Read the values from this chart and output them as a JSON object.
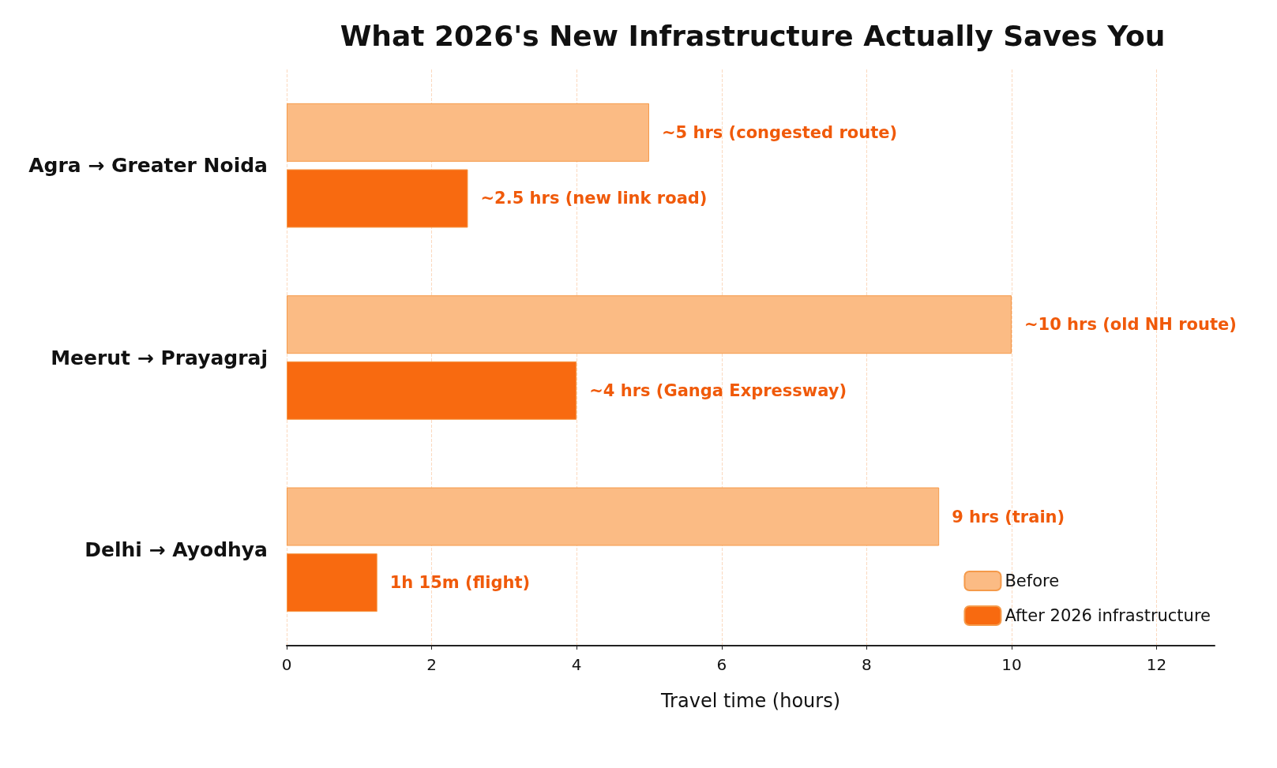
{
  "chart_data": {
    "type": "bar",
    "orientation": "horizontal",
    "title": "What 2026's New Infrastructure Actually Saves You",
    "xlabel": "Travel time (hours)",
    "categories": [
      "Agra → Greater Noida",
      "Meerut → Prayagraj",
      "Delhi → Ayodhya"
    ],
    "series": [
      {
        "name": "Before",
        "color": "#fbbb84",
        "values": [
          5,
          10,
          9
        ],
        "value_labels": [
          "~5 hrs (congested route)",
          "~10 hrs (old NH route)",
          "9 hrs (train)"
        ]
      },
      {
        "name": "After 2026 infrastructure",
        "color": "#f86a10",
        "values": [
          2.5,
          4,
          1.25
        ],
        "value_labels": [
          "~2.5 hrs (new link road)",
          "~4 hrs (Ganga Expressway)",
          "1h 15m (flight)"
        ]
      }
    ],
    "xlim": [
      0,
      12.8
    ],
    "xticks": [
      0,
      2,
      4,
      6,
      8,
      10,
      12
    ],
    "grid": "x",
    "legend": "bottom right"
  }
}
